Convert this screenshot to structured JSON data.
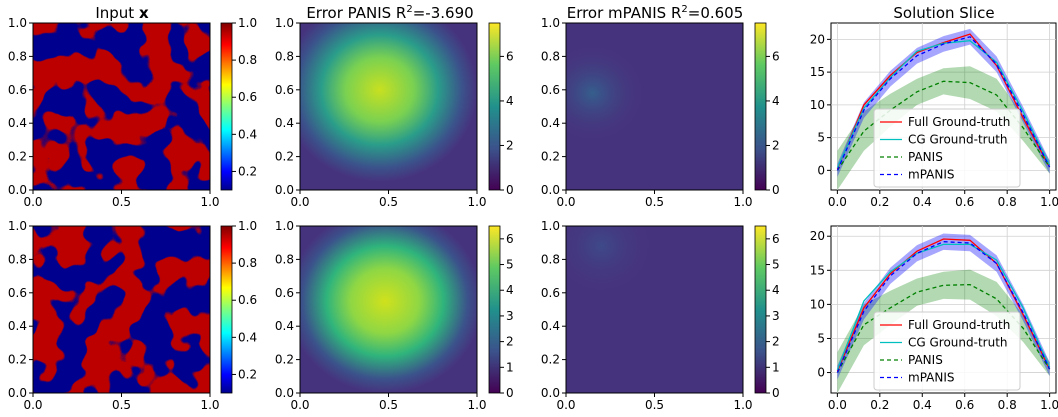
{
  "panel_titles": {
    "input": "Input",
    "input_bold": "x",
    "err_panis_prefix": "Error PANIS R",
    "err_panis_value": "=-3.690",
    "err_mpanis_prefix": "Error mPANIS R",
    "err_mpanis_value": "=0.605",
    "slice": "Solution Slice",
    "superscript": "2"
  },
  "chart_data": [
    {
      "type": "heatmap",
      "title": "Input x",
      "x_ticks": [
        "0.0",
        "0.5",
        "1.0"
      ],
      "y_ticks": [
        "0.0",
        "0.2",
        "0.4",
        "0.6",
        "0.8",
        "1.0"
      ],
      "colormap": "jet",
      "colorbar_ticks": [
        "0.2",
        "0.4",
        "0.6",
        "0.8",
        "1.0"
      ],
      "colorbar_range": [
        0.1,
        1.0
      ],
      "binary_values": [
        0.1,
        1.0
      ],
      "colors": {
        "low": "#00008f",
        "high": "#7f0000"
      }
    },
    {
      "type": "heatmap",
      "title": "Error PANIS R^2=-3.690 (row 1)",
      "x_ticks": [
        "0.0",
        "0.5",
        "1.0"
      ],
      "y_ticks": [
        "0.0",
        "0.2",
        "0.4",
        "0.6",
        "0.8",
        "1.0"
      ],
      "colormap": "viridis",
      "colorbar_ticks": [
        "0",
        "2",
        "4",
        "6"
      ],
      "colorbar_range": [
        0,
        7.5
      ],
      "peak_error": 6.8
    },
    {
      "type": "heatmap",
      "title": "Error mPANIS R^2=0.605 (row 1)",
      "x_ticks": [
        "0.0",
        "0.5",
        "1.0"
      ],
      "y_ticks": [
        "0.0",
        "0.2",
        "0.4",
        "0.6",
        "0.8",
        "1.0"
      ],
      "colormap": "viridis",
      "colorbar_ticks": [
        "0",
        "2",
        "4",
        "6"
      ],
      "colorbar_range": [
        0,
        7.5
      ],
      "peak_error": 1.3
    },
    {
      "type": "line",
      "title": "Solution Slice (row 1)",
      "x_ticks": [
        "0.0",
        "0.2",
        "0.4",
        "0.6",
        "0.8",
        "1.0"
      ],
      "y_ticks": [
        "0",
        "5",
        "10",
        "15",
        "20"
      ],
      "xlim": [
        -0.03,
        1.03
      ],
      "ylim": [
        -3,
        22.5
      ],
      "grid": true,
      "legend_position": "lower center",
      "x": [
        0.0,
        0.125,
        0.25,
        0.375,
        0.5,
        0.625,
        0.75,
        0.875,
        1.0
      ],
      "series": [
        {
          "name": "Full Ground-truth",
          "color": "#ff0000",
          "style": "solid",
          "values": [
            0.2,
            10,
            14.5,
            18,
            19.5,
            20.8,
            16,
            8,
            0.5
          ]
        },
        {
          "name": "CG Ground-truth",
          "color": "#00bfbf",
          "style": "solid",
          "values": [
            0.4,
            9.5,
            14.2,
            18.2,
            19.4,
            19.8,
            16.5,
            9,
            0.8
          ]
        },
        {
          "name": "PANIS",
          "color": "#008000",
          "style": "dashed",
          "values": [
            0,
            6,
            9.2,
            12,
            13.6,
            13.4,
            11.5,
            6.5,
            0.5
          ],
          "band": [
            3,
            3,
            2.5,
            2,
            2,
            2.5,
            2.5,
            2,
            1
          ]
        },
        {
          "name": "mPANIS",
          "color": "#0000ff",
          "style": "dashed",
          "values": [
            0,
            9.2,
            14,
            17.5,
            19.3,
            20.4,
            16.2,
            8.5,
            0.5
          ],
          "band": [
            1,
            1.2,
            1.2,
            1.2,
            1.2,
            1.2,
            1.2,
            1.2,
            1
          ]
        }
      ]
    },
    {
      "type": "heatmap",
      "title": "Input x (row 2)",
      "x_ticks": [
        "0.0",
        "0.5",
        "1.0"
      ],
      "y_ticks": [
        "0.0",
        "0.2",
        "0.4",
        "0.6",
        "0.8",
        "1.0"
      ],
      "colormap": "jet",
      "colorbar_ticks": [
        "0.2",
        "0.4",
        "0.6",
        "0.8",
        "1.0"
      ],
      "colorbar_range": [
        0.1,
        1.0
      ],
      "binary_values": [
        0.1,
        1.0
      ],
      "colors": {
        "low": "#00008f",
        "high": "#7f0000"
      }
    },
    {
      "type": "heatmap",
      "title": "Error PANIS (row 2)",
      "x_ticks": [
        "0.0",
        "0.5",
        "1.0"
      ],
      "y_ticks": [
        "0.0",
        "0.2",
        "0.4",
        "0.6",
        "0.8",
        "1.0"
      ],
      "colormap": "viridis",
      "colorbar_ticks": [
        "0",
        "1",
        "2",
        "3",
        "4",
        "5",
        "6"
      ],
      "colorbar_range": [
        0,
        6.5
      ],
      "peak_error": 6.0
    },
    {
      "type": "heatmap",
      "title": "Error mPANIS (row 2)",
      "x_ticks": [
        "0.0",
        "0.5",
        "1.0"
      ],
      "y_ticks": [
        "0.0",
        "0.2",
        "0.4",
        "0.6",
        "0.8",
        "1.0"
      ],
      "colormap": "viridis",
      "colorbar_ticks": [
        "0",
        "1",
        "2",
        "3",
        "4",
        "5",
        "6"
      ],
      "colorbar_range": [
        0,
        6.5
      ],
      "peak_error": 1.2
    },
    {
      "type": "line",
      "title": "Solution Slice (row 2)",
      "x_ticks": [
        "0.0",
        "0.2",
        "0.4",
        "0.6",
        "0.8",
        "1.0"
      ],
      "y_ticks": [
        "0",
        "5",
        "10",
        "15",
        "20"
      ],
      "xlim": [
        -0.03,
        1.03
      ],
      "ylim": [
        -3,
        21.5
      ],
      "grid": true,
      "legend_position": "lower center",
      "x": [
        0.0,
        0.125,
        0.25,
        0.375,
        0.5,
        0.625,
        0.75,
        0.875,
        1.0
      ],
      "series": [
        {
          "name": "Full Ground-truth",
          "color": "#ff0000",
          "style": "solid",
          "values": [
            0.2,
            9.5,
            14.5,
            17.8,
            19.6,
            19.4,
            16,
            8.5,
            0.5
          ]
        },
        {
          "name": "CG Ground-truth",
          "color": "#00bfbf",
          "style": "solid",
          "values": [
            0.4,
            10.5,
            14.8,
            17.5,
            18.8,
            18.8,
            16.5,
            9.5,
            0.8
          ]
        },
        {
          "name": "PANIS",
          "color": "#008000",
          "style": "dashed",
          "values": [
            0,
            7,
            9.5,
            11.8,
            12.8,
            12.9,
            10.8,
            6.5,
            0.5
          ],
          "band": [
            3,
            3,
            2.5,
            2,
            2,
            2.2,
            2.5,
            2,
            1
          ]
        },
        {
          "name": "mPANIS",
          "color": "#0000ff",
          "style": "dashed",
          "values": [
            0,
            9,
            14.2,
            17.5,
            19.2,
            19,
            16,
            8.8,
            0.5
          ],
          "band": [
            1,
            1.2,
            1.2,
            1.2,
            1.2,
            1.2,
            1.2,
            1.2,
            1
          ]
        }
      ]
    }
  ]
}
